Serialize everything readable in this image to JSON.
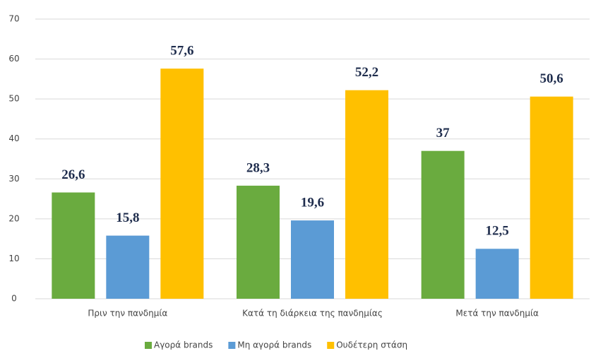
{
  "chart_data": {
    "type": "bar",
    "categories": [
      "Πριν την πανδημία",
      "Κατά τη διάρκεια της πανδημίας",
      "Μετά την πανδημία"
    ],
    "series": [
      {
        "name": "Αγορά brands",
        "color": "#6aab3f",
        "values": [
          26.6,
          28.3,
          37
        ],
        "value_labels": [
          "26,6",
          "28,3",
          "37"
        ]
      },
      {
        "name": "Μη αγορά brands",
        "color": "#5b9bd5",
        "values": [
          15.8,
          19.6,
          12.5
        ],
        "value_labels": [
          "15,8",
          "19,6",
          "12,5"
        ]
      },
      {
        "name": "Ουδέτερη στάση",
        "color": "#ffc000",
        "values": [
          57.6,
          52.2,
          50.6
        ],
        "value_labels": [
          "57,6",
          "52,2",
          "50,6"
        ]
      }
    ],
    "ylim": [
      0,
      70
    ],
    "yticks": [
      0,
      10,
      20,
      30,
      40,
      50,
      60,
      70
    ],
    "grid": true,
    "legend": "bottom"
  }
}
